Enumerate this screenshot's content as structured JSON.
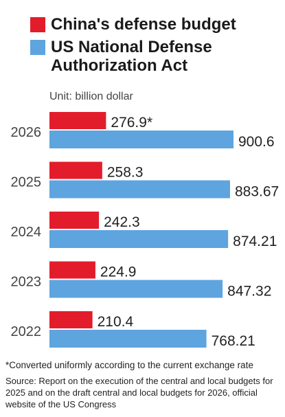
{
  "legend": {
    "china_label": "China's defense budget",
    "us_label": "US National Defense Authorization Act"
  },
  "unit_text": "Unit: billion dollar",
  "colors": {
    "china": "#e31c2b",
    "us": "#5ea4df"
  },
  "footnote": "*Converted uniformly according to the current exchange rate",
  "source": "Source: Report on the execution of the central and local budgets for 2025 and on the draft central and local budgets for 2026, official website of the US Congress",
  "chart_data": {
    "type": "bar",
    "orientation": "horizontal",
    "categories": [
      "2026",
      "2025",
      "2024",
      "2023",
      "2022"
    ],
    "series": [
      {
        "name": "China's defense budget",
        "values": [
          276.9,
          258.3,
          242.3,
          224.9,
          210.4
        ],
        "labels": [
          "276.9*",
          "258.3",
          "242.3",
          "224.9",
          "210.4"
        ]
      },
      {
        "name": "US National Defense Authorization Act",
        "values": [
          900.6,
          883.67,
          874.21,
          847.32,
          768.21
        ],
        "labels": [
          "900.6",
          "883.67",
          "874.21",
          "847.32",
          "768.21"
        ]
      }
    ],
    "xlim": [
      0,
      900.6
    ],
    "grid": false,
    "legend_position": "top"
  }
}
